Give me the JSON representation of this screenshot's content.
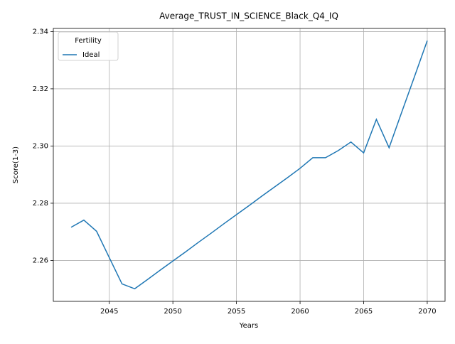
{
  "chart_data": {
    "type": "line",
    "title": "Average_TRUST_IN_SCIENCE_Black_Q4_IQ",
    "x_label": "Years",
    "y_label": "Score(1-3)",
    "x": [
      2042,
      2043,
      2044,
      2045,
      2046,
      2047,
      2048,
      2049,
      2050,
      2051,
      2052,
      2053,
      2054,
      2055,
      2056,
      2057,
      2058,
      2059,
      2060,
      2061,
      2062,
      2063,
      2064,
      2065,
      2066,
      2067,
      2068,
      2069,
      2070
    ],
    "series": [
      {
        "name": "Ideal",
        "color": "#1f77b4",
        "values": [
          2.2716,
          2.2741,
          2.2702,
          2.261,
          2.2518,
          2.2501,
          2.2533,
          2.2566,
          2.2598,
          2.263,
          2.2663,
          2.2695,
          2.2728,
          2.276,
          2.2792,
          2.2825,
          2.2857,
          2.2889,
          2.2922,
          2.2959,
          2.2959,
          2.2984,
          2.3014,
          2.2976,
          2.3093,
          2.2994,
          2.3119,
          2.3243,
          2.3368
        ]
      }
    ],
    "xlim": [
      2040.6,
      2071.4
    ],
    "xticks": [
      2045,
      2050,
      2055,
      2060,
      2065,
      2070
    ],
    "ylim": [
      2.2457,
      2.3411
    ],
    "yticks": [
      {
        "value": 2.26,
        "label": "2.26"
      },
      {
        "value": 2.28,
        "label": "2.28"
      },
      {
        "value": 2.3,
        "label": "2.30"
      },
      {
        "value": 2.32,
        "label": "2.32"
      },
      {
        "value": 2.34,
        "label": "2.34"
      }
    ],
    "grid": true,
    "legend_title": "Fertility",
    "legend_position": "upper-left"
  }
}
